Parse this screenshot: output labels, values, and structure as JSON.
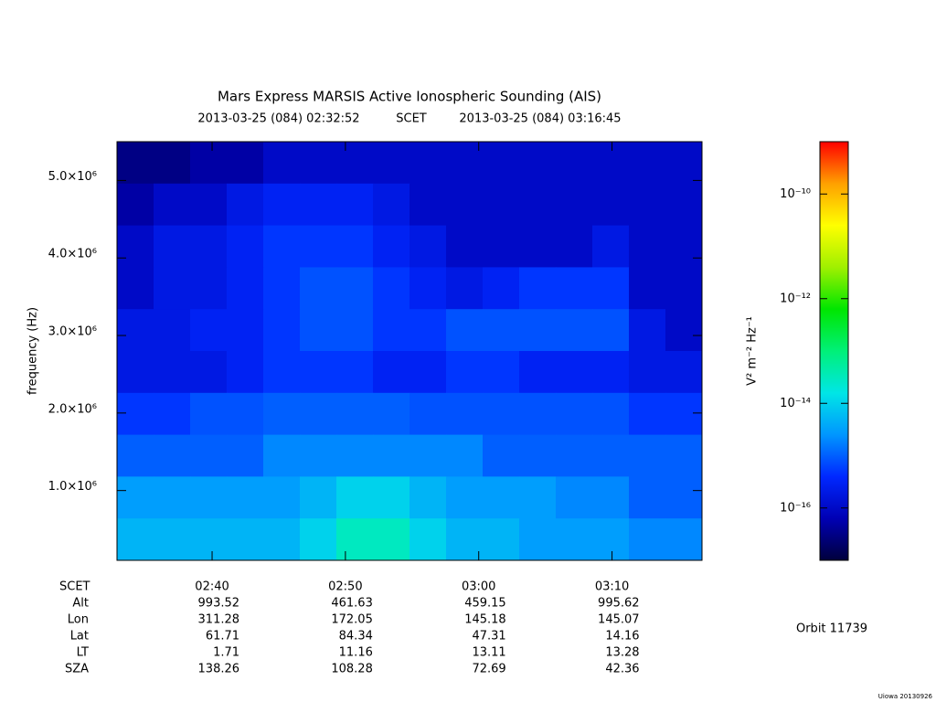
{
  "chart_data": {
    "type": "spectrogram",
    "title": "Mars Express MARSIS Active Ionospheric Sounding (AIS)",
    "subtitle": {
      "start": "2013-03-25 (084) 02:32:52",
      "system": "SCET",
      "end": "2013-03-25 (084) 03:16:45"
    },
    "ylabel": "frequency (Hz)",
    "zlabel": "V² m⁻² Hz⁻¹",
    "xlim": [
      "02:32:52",
      "03:16:45"
    ],
    "xticks": [
      "02:40",
      "02:50",
      "03:00",
      "03:10"
    ],
    "ylim": [
      100000,
      5500000
    ],
    "yticks": [
      {
        "value": 1000000,
        "label": "1.0×10⁶"
      },
      {
        "value": 2000000,
        "label": "2.0×10⁶"
      },
      {
        "value": 3000000,
        "label": "3.0×10⁶"
      },
      {
        "value": 4000000,
        "label": "4.0×10⁶"
      },
      {
        "value": 5000000,
        "label": "5.0×10⁶"
      }
    ],
    "zlog": true,
    "zlim": [
      1e-17,
      1e-09
    ],
    "zticks": [
      {
        "value": 1e-10,
        "label": "10⁻¹⁰"
      },
      {
        "value": 1e-12,
        "label": "10⁻¹²"
      },
      {
        "value": 1e-14,
        "label": "10⁻¹⁴"
      },
      {
        "value": 1e-16,
        "label": "10⁻¹⁶"
      }
    ],
    "colormap": [
      "#00003c",
      "#0000b4",
      "#0028ff",
      "#0096ff",
      "#00e6e6",
      "#00f078",
      "#00e600",
      "#a0f000",
      "#ffff00",
      "#ffa000",
      "#ff0000"
    ],
    "z": [
      [
        3e-17,
        3e-17,
        5e-17,
        5e-17,
        1e-16,
        1e-16,
        1e-16,
        1e-16,
        1e-16,
        1e-16,
        1e-16,
        1e-16,
        1e-16,
        1e-16,
        1e-16,
        1e-16
      ],
      [
        5e-17,
        1e-16,
        1e-16,
        2e-16,
        3e-16,
        3e-16,
        3e-16,
        2e-16,
        1e-16,
        1e-16,
        1e-16,
        1e-16,
        1e-16,
        1e-16,
        1e-16,
        1e-16
      ],
      [
        1e-16,
        2e-16,
        2e-16,
        3e-16,
        5e-16,
        5e-16,
        5e-16,
        3e-16,
        2e-16,
        1e-16,
        1e-16,
        1e-16,
        1e-16,
        2e-16,
        1e-16,
        1e-16
      ],
      [
        1e-16,
        2e-16,
        2e-16,
        3e-16,
        5e-16,
        8e-16,
        8e-16,
        5e-16,
        3e-16,
        2e-16,
        3e-16,
        5e-16,
        5e-16,
        5e-16,
        1e-16,
        1e-16
      ],
      [
        2e-16,
        2e-16,
        3e-16,
        3e-16,
        5e-16,
        8e-16,
        8e-16,
        5e-16,
        5e-16,
        8e-16,
        8e-16,
        8e-16,
        8e-16,
        8e-16,
        2e-16,
        1e-16
      ],
      [
        2e-16,
        2e-16,
        2e-16,
        3e-16,
        5e-16,
        5e-16,
        5e-16,
        3e-16,
        3e-16,
        5e-16,
        5e-16,
        3e-16,
        3e-16,
        3e-16,
        2e-16,
        2e-16
      ],
      [
        5e-16,
        5e-16,
        8e-16,
        8e-16,
        1e-15,
        1e-15,
        1e-15,
        1e-15,
        8e-16,
        8e-16,
        8e-16,
        8e-16,
        8e-16,
        8e-16,
        5e-16,
        5e-16
      ],
      [
        1e-15,
        1e-15,
        1e-15,
        1e-15,
        2e-15,
        2e-15,
        2e-15,
        2e-15,
        2e-15,
        2e-15,
        1e-15,
        1e-15,
        1e-15,
        1e-15,
        1e-15,
        1e-15
      ],
      [
        3e-15,
        3e-15,
        3e-15,
        3e-15,
        3e-15,
        5e-15,
        1e-14,
        1e-14,
        5e-15,
        3e-15,
        3e-15,
        3e-15,
        2e-15,
        2e-15,
        1e-15,
        1e-15
      ],
      [
        5e-15,
        5e-15,
        5e-15,
        5e-15,
        5e-15,
        1e-14,
        3e-14,
        3e-14,
        1e-14,
        5e-15,
        5e-15,
        3e-15,
        3e-15,
        3e-15,
        2e-15,
        2e-15
      ]
    ],
    "time_label": "SCET",
    "ephemeris": [
      {
        "label": "Alt",
        "values": [
          993.52,
          461.63,
          459.15,
          995.62
        ]
      },
      {
        "label": "Lon",
        "values": [
          311.28,
          172.05,
          145.18,
          145.07
        ]
      },
      {
        "label": "Lat",
        "values": [
          61.71,
          84.34,
          47.31,
          14.16
        ]
      },
      {
        "label": "LT",
        "values": [
          1.71,
          11.16,
          13.11,
          13.28
        ]
      },
      {
        "label": "SZA",
        "values": [
          138.26,
          108.28,
          72.69,
          42.36
        ]
      }
    ],
    "orbit": "Orbit 11739",
    "credit": "Uiowa 20130926"
  }
}
